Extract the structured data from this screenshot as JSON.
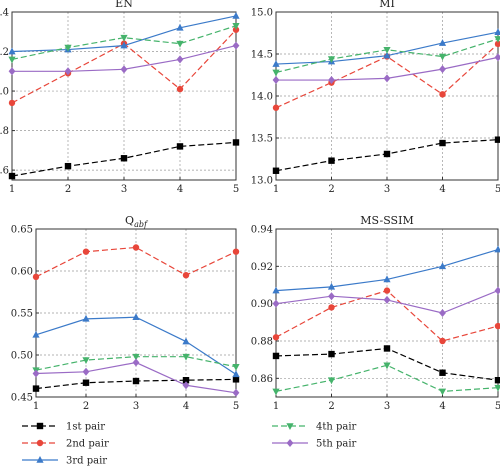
{
  "series_styles": [
    {
      "color": "#000000",
      "marker": "square",
      "dash": "6,3"
    },
    {
      "color": "#e8463a",
      "marker": "circle",
      "dash": "6,3"
    },
    {
      "color": "#3b7ac9",
      "marker": "triangle-up",
      "dash": ""
    },
    {
      "color": "#45b36b",
      "marker": "triangle-down",
      "dash": "6,3"
    },
    {
      "color": "#9a6bc5",
      "marker": "diamond",
      "dash": ""
    }
  ],
  "legend": [
    "1st pair",
    "2nd pair",
    "3rd pair",
    "4th pair",
    "5th pair"
  ],
  "chart_data": [
    {
      "type": "line",
      "title": "EN",
      "x": [
        1,
        2,
        3,
        4,
        5
      ],
      "xlim": [
        1,
        5
      ],
      "ylim": [
        6.55,
        7.4
      ],
      "yticks": [
        "6.6",
        "6.8",
        "7.0",
        "7.2",
        "7.4"
      ],
      "ytick_values": [
        6.6,
        6.8,
        7.0,
        7.2,
        7.4
      ],
      "grid": true,
      "series": [
        {
          "name": "1st pair",
          "values": [
            6.57,
            6.62,
            6.66,
            6.72,
            6.74
          ]
        },
        {
          "name": "2nd pair",
          "values": [
            6.94,
            7.09,
            7.24,
            7.01,
            7.31
          ]
        },
        {
          "name": "3rd pair",
          "values": [
            7.2,
            7.21,
            7.23,
            7.32,
            7.38
          ]
        },
        {
          "name": "4th pair",
          "values": [
            7.16,
            7.22,
            7.27,
            7.24,
            7.33
          ]
        },
        {
          "name": "5th pair",
          "values": [
            7.1,
            7.1,
            7.11,
            7.16,
            7.23
          ]
        }
      ]
    },
    {
      "type": "line",
      "title": "MI",
      "x": [
        1,
        2,
        3,
        4,
        5
      ],
      "xlim": [
        1,
        5
      ],
      "ylim": [
        13.0,
        15.0
      ],
      "yticks": [
        "13.0",
        "13.5",
        "14.0",
        "14.5",
        "15.0"
      ],
      "ytick_values": [
        13.0,
        13.5,
        14.0,
        14.5,
        15.0
      ],
      "grid": true,
      "series": [
        {
          "name": "1st pair",
          "values": [
            13.11,
            13.23,
            13.31,
            13.44,
            13.48
          ]
        },
        {
          "name": "2nd pair",
          "values": [
            13.86,
            14.16,
            14.47,
            14.02,
            14.62
          ]
        },
        {
          "name": "3rd pair",
          "values": [
            14.38,
            14.41,
            14.48,
            14.63,
            14.76
          ]
        },
        {
          "name": "4th pair",
          "values": [
            14.28,
            14.44,
            14.55,
            14.47,
            14.68
          ]
        },
        {
          "name": "5th pair",
          "values": [
            14.19,
            14.19,
            14.21,
            14.32,
            14.46
          ]
        }
      ]
    },
    {
      "type": "line",
      "title": "Q",
      "title_sub": "abf",
      "x": [
        1,
        2,
        3,
        4,
        5
      ],
      "xlim": [
        1,
        5
      ],
      "ylim": [
        0.45,
        0.65
      ],
      "yticks": [
        "0.45",
        "0.50",
        "0.55",
        "0.60",
        "0.65"
      ],
      "ytick_values": [
        0.45,
        0.5,
        0.55,
        0.6,
        0.65
      ],
      "grid": true,
      "series": [
        {
          "name": "1st pair",
          "values": [
            0.46,
            0.467,
            0.469,
            0.47,
            0.471
          ]
        },
        {
          "name": "2nd pair",
          "values": [
            0.593,
            0.623,
            0.628,
            0.595,
            0.623
          ]
        },
        {
          "name": "3rd pair",
          "values": [
            0.524,
            0.543,
            0.545,
            0.516,
            0.477
          ]
        },
        {
          "name": "4th pair",
          "values": [
            0.482,
            0.494,
            0.498,
            0.498,
            0.486
          ]
        },
        {
          "name": "5th pair",
          "values": [
            0.478,
            0.48,
            0.491,
            0.464,
            0.455
          ]
        }
      ]
    },
    {
      "type": "line",
      "title": "MS-SSIM",
      "x": [
        1,
        2,
        3,
        4,
        5
      ],
      "xlim": [
        1,
        5
      ],
      "ylim": [
        0.85,
        0.94
      ],
      "yticks": [
        "0.86",
        "0.88",
        "0.90",
        "0.92",
        "0.94"
      ],
      "ytick_values": [
        0.86,
        0.88,
        0.9,
        0.92,
        0.94
      ],
      "grid": true,
      "series": [
        {
          "name": "1st pair",
          "values": [
            0.872,
            0.873,
            0.876,
            0.863,
            0.859
          ]
        },
        {
          "name": "2nd pair",
          "values": [
            0.882,
            0.898,
            0.907,
            0.88,
            0.888
          ]
        },
        {
          "name": "3rd pair",
          "values": [
            0.907,
            0.909,
            0.913,
            0.92,
            0.929
          ]
        },
        {
          "name": "4th pair",
          "values": [
            0.853,
            0.859,
            0.867,
            0.853,
            0.855
          ]
        },
        {
          "name": "5th pair",
          "values": [
            0.9,
            0.904,
            0.902,
            0.895,
            0.907
          ]
        }
      ]
    }
  ]
}
